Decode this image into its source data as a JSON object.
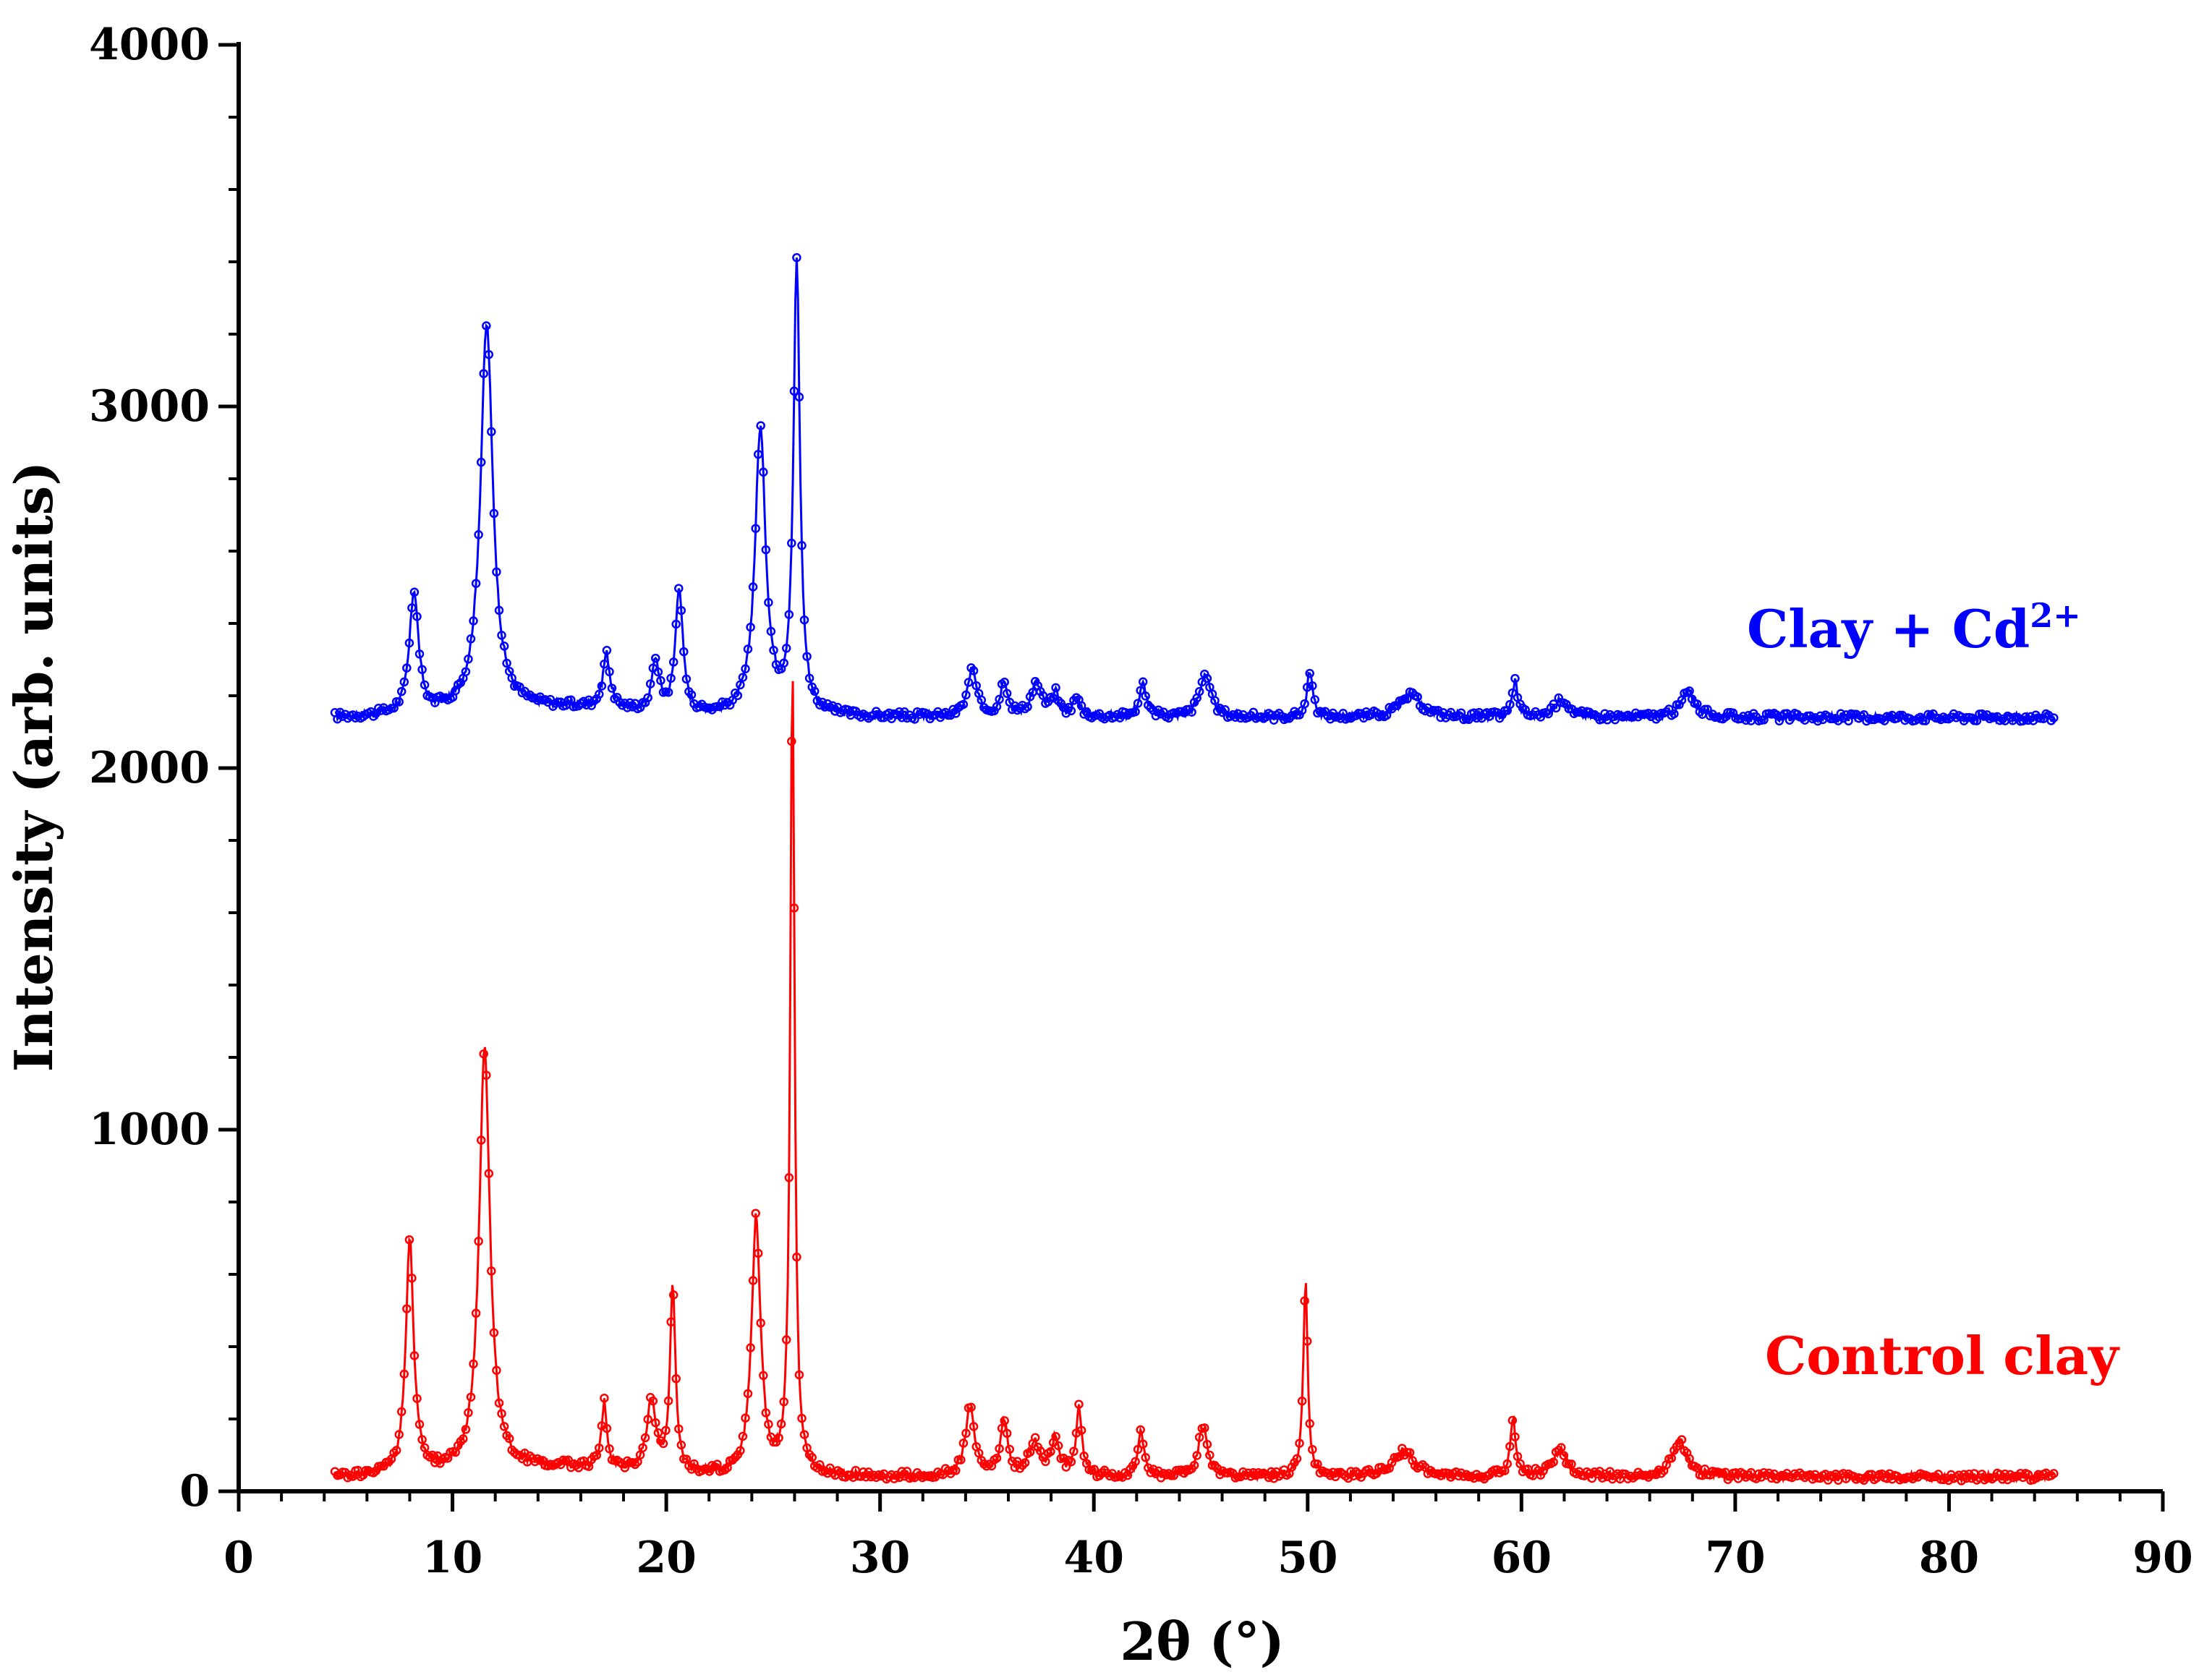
{
  "chart_data": {
    "type": "line",
    "xlabel": "2θ (°)",
    "ylabel": "Intensity (arb. units)",
    "xlim": [
      0,
      90
    ],
    "ylim": [
      0,
      4000
    ],
    "x_ticks": [
      "0",
      "10",
      "20",
      "30",
      "40",
      "50",
      "60",
      "70",
      "80",
      "90"
    ],
    "y_ticks": [
      "0",
      "1000",
      "2000",
      "3000",
      "4000"
    ],
    "grid": false,
    "legend": "inline labels beside curves",
    "x_range": [
      4.5,
      85
    ],
    "series": [
      {
        "name": "Clay + Cd²⁺",
        "color": "#0000ff",
        "baseline": 2140,
        "label_main": "Clay + Cd",
        "label_sup": "2+",
        "peaks": [
          [
            8.2,
            2480,
            0.25
          ],
          [
            11.6,
            3210,
            0.35
          ],
          [
            17.2,
            2290,
            0.2
          ],
          [
            19.5,
            2280,
            0.2
          ],
          [
            20.6,
            2490,
            0.2
          ],
          [
            24.4,
            2930,
            0.3
          ],
          [
            26.1,
            3390,
            0.18
          ],
          [
            34.3,
            2270,
            0.25
          ],
          [
            35.8,
            2240,
            0.2
          ],
          [
            37.3,
            2230,
            0.3
          ],
          [
            38.2,
            2200,
            0.2
          ],
          [
            39.2,
            2190,
            0.2
          ],
          [
            42.3,
            2230,
            0.2
          ],
          [
            45.2,
            2260,
            0.3
          ],
          [
            50.1,
            2270,
            0.15
          ],
          [
            54.8,
            2200,
            0.6
          ],
          [
            59.7,
            2240,
            0.15
          ],
          [
            61.9,
            2190,
            0.4
          ],
          [
            67.8,
            2210,
            0.4
          ]
        ]
      },
      {
        "name": "Control clay",
        "color": "#ff0000",
        "baseline": 40,
        "label_main": "Control clay",
        "label_sup": "",
        "peaks": [
          [
            8.0,
            690,
            0.22
          ],
          [
            11.5,
            1220,
            0.3
          ],
          [
            17.1,
            220,
            0.15
          ],
          [
            19.3,
            230,
            0.25
          ],
          [
            20.3,
            550,
            0.15
          ],
          [
            24.2,
            750,
            0.25
          ],
          [
            25.9,
            2280,
            0.12
          ],
          [
            34.2,
            230,
            0.25
          ],
          [
            35.8,
            190,
            0.2
          ],
          [
            37.2,
            130,
            0.3
          ],
          [
            38.2,
            140,
            0.25
          ],
          [
            39.3,
            230,
            0.15
          ],
          [
            42.2,
            170,
            0.15
          ],
          [
            45.1,
            180,
            0.25
          ],
          [
            49.9,
            590,
            0.12
          ],
          [
            54.5,
            110,
            0.6
          ],
          [
            59.6,
            200,
            0.15
          ],
          [
            61.8,
            110,
            0.4
          ],
          [
            67.4,
            140,
            0.4
          ]
        ]
      }
    ]
  }
}
